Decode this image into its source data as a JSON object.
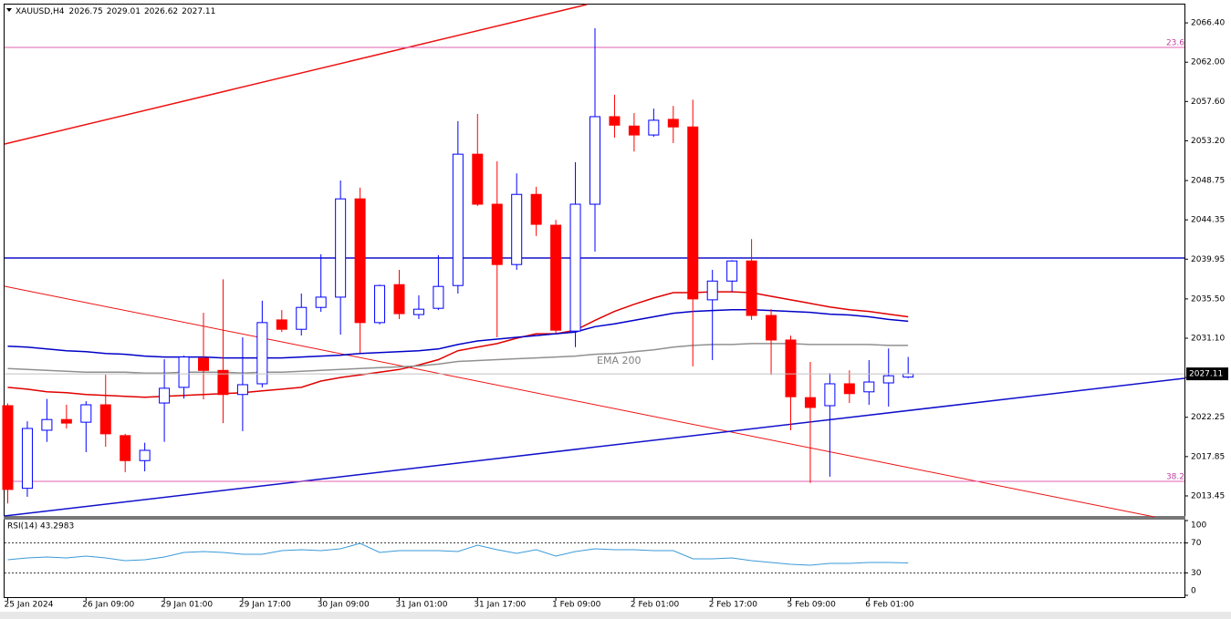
{
  "chart_data": [
    {
      "type": "candlestick",
      "symbol": "XAUUSD,H4",
      "categories": [
        "25 Jan 2024",
        null,
        null,
        null,
        "26 Jan 09:00",
        null,
        null,
        null,
        "29 Jan 01:00",
        null,
        null,
        null,
        "29 Jan 17:00",
        null,
        null,
        null,
        "30 Jan 09:00",
        null,
        null,
        null,
        "31 Jan 01:00",
        null,
        null,
        null,
        "31 Jan 17:00",
        null,
        null,
        null,
        "1 Feb 09:00",
        null,
        null,
        null,
        "2 Feb 01:00",
        null,
        null,
        null,
        "2 Feb 17:00",
        null,
        null,
        null,
        "5 Feb 09:00",
        null,
        null,
        null,
        "6 Feb 01:00",
        null,
        null
      ],
      "open": [
        2023.55,
        2014.3,
        2020.8,
        2022.0,
        2021.7,
        2023.65,
        2020.2,
        2017.4,
        2023.85,
        2025.6,
        2028.85,
        2027.5,
        2024.8,
        2026.0,
        2033.15,
        2032.1,
        2034.55,
        2035.7,
        2046.7,
        2032.85,
        2037.1,
        2033.75,
        2034.45,
        2037.0,
        2051.7,
        2046.1,
        2039.35,
        2047.2,
        2043.75,
        2031.9,
        2046.1,
        2055.9,
        2054.85,
        2053.85,
        2055.6,
        2054.75,
        2035.4,
        2037.5,
        2039.75,
        2033.65,
        2030.9,
        2024.45,
        2023.55,
        2026.0,
        2025.1,
        2026.1,
        2026.75
      ],
      "high": [
        2023.8,
        2021.8,
        2024.3,
        2023.65,
        2024.05,
        2027.0,
        2020.4,
        2019.4,
        2028.75,
        2029.15,
        2033.95,
        2037.7,
        2031.2,
        2035.3,
        2034.25,
        2036.1,
        2040.5,
        2048.75,
        2047.95,
        2037.1,
        2038.75,
        2035.9,
        2040.4,
        2055.4,
        2056.2,
        2050.9,
        2049.55,
        2048.05,
        2044.35,
        2050.8,
        2065.8,
        2058.35,
        2056.3,
        2056.8,
        2057.1,
        2057.8,
        2038.75,
        2039.85,
        2042.2,
        2034.35,
        2031.4,
        2028.45,
        2027.2,
        2027.5,
        2028.65,
        2029.95,
        2029.01
      ],
      "low": [
        2012.6,
        2013.35,
        2019.5,
        2021.0,
        2018.35,
        2018.95,
        2016.1,
        2016.2,
        2019.5,
        2024.35,
        2024.25,
        2021.6,
        2020.7,
        2025.6,
        2031.8,
        2031.4,
        2034.05,
        2031.5,
        2029.45,
        2032.65,
        2033.25,
        2033.25,
        2034.25,
        2036.1,
        2045.9,
        2031.2,
        2038.75,
        2042.55,
        2031.7,
        2030.1,
        2040.8,
        2053.55,
        2052.0,
        2053.65,
        2052.95,
        2027.95,
        2028.65,
        2036.3,
        2033.15,
        2027.0,
        2020.8,
        2014.9,
        2015.6,
        2023.85,
        2023.65,
        2023.45,
        2026.62
      ],
      "close": [
        2014.17,
        2021.0,
        2022.0,
        2021.6,
        2023.65,
        2020.4,
        2017.4,
        2018.55,
        2025.5,
        2029.0,
        2027.5,
        2024.8,
        2025.9,
        2032.85,
        2032.1,
        2034.55,
        2035.7,
        2046.7,
        2032.85,
        2037.0,
        2033.85,
        2034.35,
        2036.9,
        2051.7,
        2046.1,
        2039.35,
        2047.2,
        2043.85,
        2032.0,
        2046.1,
        2055.9,
        2054.95,
        2053.85,
        2055.5,
        2054.75,
        2035.5,
        2037.5,
        2039.75,
        2033.65,
        2030.9,
        2024.55,
        2023.35,
        2026.0,
        2024.9,
        2026.2,
        2026.9,
        2027.11
      ],
      "bull_color": "#0000ff",
      "bear_color": "#ff0000",
      "lines": [
        {
          "color": "#e00000",
          "values": [
            2025.6,
            2025.4,
            2025.1,
            2025.0,
            2024.8,
            2024.7,
            2024.6,
            2024.5,
            2024.6,
            2024.7,
            2024.8,
            2024.9,
            2025.0,
            2025.2,
            2025.4,
            2025.6,
            2026.3,
            2026.7,
            2027.0,
            2027.3,
            2027.6,
            2028.1,
            2028.7,
            2029.7,
            2030.1,
            2030.5,
            2031.1,
            2031.6,
            2031.6,
            2032.0,
            2033.1,
            2034.1,
            2034.9,
            2035.6,
            2036.2,
            2036.2,
            2036.3,
            2036.3,
            2036.2,
            2035.8,
            2035.4,
            2035.0,
            2034.6,
            2034.3,
            2034.1,
            2033.8,
            2033.5
          ]
        },
        {
          "color": "#0000c8",
          "values": [
            2030.2,
            2030.1,
            2029.9,
            2029.7,
            2029.6,
            2029.4,
            2029.3,
            2029.1,
            2029.0,
            2029.0,
            2029.0,
            2028.9,
            2028.9,
            2028.9,
            2028.9,
            2029.0,
            2029.1,
            2029.2,
            2029.4,
            2029.5,
            2029.6,
            2029.7,
            2029.9,
            2030.4,
            2030.8,
            2031.0,
            2031.2,
            2031.4,
            2031.6,
            2031.8,
            2032.4,
            2032.7,
            2033.1,
            2033.5,
            2033.9,
            2034.1,
            2034.2,
            2034.3,
            2034.3,
            2034.2,
            2034.1,
            2034.0,
            2033.8,
            2033.7,
            2033.5,
            2033.2,
            2033.0
          ]
        },
        {
          "name": "EMA 200",
          "color": "#909090",
          "values": [
            2027.7,
            2027.6,
            2027.5,
            2027.4,
            2027.3,
            2027.3,
            2027.3,
            2027.2,
            2027.2,
            2027.3,
            2027.3,
            2027.3,
            2027.2,
            2027.3,
            2027.3,
            2027.4,
            2027.5,
            2027.6,
            2027.7,
            2027.8,
            2027.9,
            2028.0,
            2028.2,
            2028.5,
            2028.6,
            2028.7,
            2028.8,
            2028.9,
            2029.0,
            2029.1,
            2029.3,
            2029.4,
            2029.6,
            2029.8,
            2030.1,
            2030.3,
            2030.4,
            2030.4,
            2030.5,
            2030.5,
            2030.5,
            2030.4,
            2030.4,
            2030.4,
            2030.4,
            2030.3,
            2030.3
          ]
        }
      ],
      "fib_levels": [
        23.6,
        38.2
      ],
      "ylim": [
        2011.1,
        2068.45
      ],
      "yticks": [
        {
          "value": 2066.4,
          "label": "2066.40"
        },
        {
          "value": 2062.0,
          "label": "2062.00"
        },
        {
          "value": 2057.6,
          "label": "2057.60"
        },
        {
          "value": 2053.2,
          "label": "2053.20"
        },
        {
          "value": 2048.75,
          "label": "2048.75"
        },
        {
          "value": 2044.35,
          "label": "2044.35"
        },
        {
          "value": 2039.95,
          "label": "2039.95"
        },
        {
          "value": 2035.5,
          "label": "2035.50"
        },
        {
          "value": 2031.1,
          "label": "2031.10"
        },
        {
          "value": 2026.7,
          "label": "2026.70"
        },
        {
          "value": 2022.25,
          "label": "2022.25"
        },
        {
          "value": 2017.85,
          "label": "2017.85"
        },
        {
          "value": 2013.45,
          "label": "2013.45"
        }
      ],
      "grid": false
    },
    {
      "type": "line",
      "title": "RSI(14) 43.2983",
      "color": "#3a9ad9",
      "values": [
        47.6,
        50.0,
        51.2,
        50.0,
        52.4,
        50.0,
        46.3,
        47.6,
        51.2,
        57.3,
        58.5,
        57.3,
        54.9,
        54.9,
        59.8,
        61.0,
        59.8,
        62.2,
        69.5,
        57.3,
        59.8,
        59.8,
        59.8,
        58.5,
        67.1,
        61.0,
        56.1,
        61.0,
        52.4,
        58.5,
        62.2,
        61.0,
        61.0,
        59.8,
        59.8,
        48.8,
        48.8,
        50.0,
        46.3,
        43.9,
        41.5,
        40.2,
        42.7,
        42.7,
        43.9,
        43.9,
        43.3
      ],
      "ylim": [
        0,
        100
      ],
      "yticks": [
        100,
        70,
        30,
        0
      ],
      "grid": true
    }
  ]
}
